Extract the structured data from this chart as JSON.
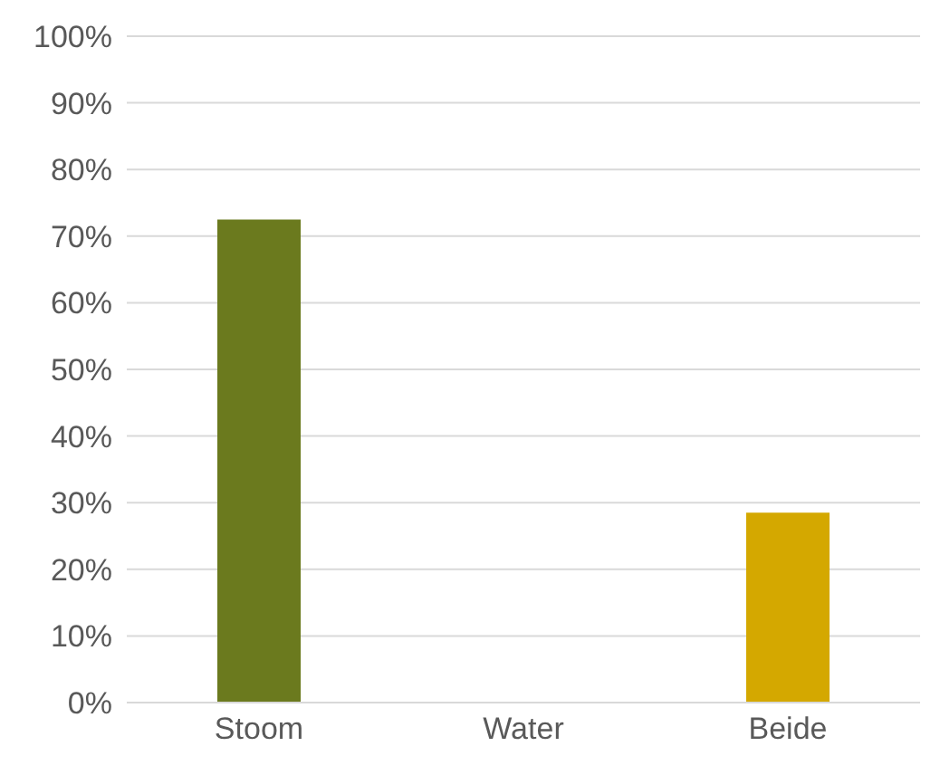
{
  "chart_data": {
    "type": "bar",
    "categories": [
      "Stoom",
      "Water",
      "Beide"
    ],
    "values": [
      72.5,
      0,
      28.5
    ],
    "colors": [
      "#6b7a1e",
      "#6b7a1e",
      "#d4a800"
    ],
    "ylim": [
      0,
      100
    ],
    "yticks": [
      {
        "value": 0,
        "label": "0%"
      },
      {
        "value": 10,
        "label": "10%"
      },
      {
        "value": 20,
        "label": "20%"
      },
      {
        "value": 30,
        "label": "30%"
      },
      {
        "value": 40,
        "label": "40%"
      },
      {
        "value": 50,
        "label": "50%"
      },
      {
        "value": 60,
        "label": "60%"
      },
      {
        "value": 70,
        "label": "70%"
      },
      {
        "value": 80,
        "label": "80%"
      },
      {
        "value": 90,
        "label": "90%"
      },
      {
        "value": 100,
        "label": "100%"
      }
    ],
    "grid": "y"
  }
}
